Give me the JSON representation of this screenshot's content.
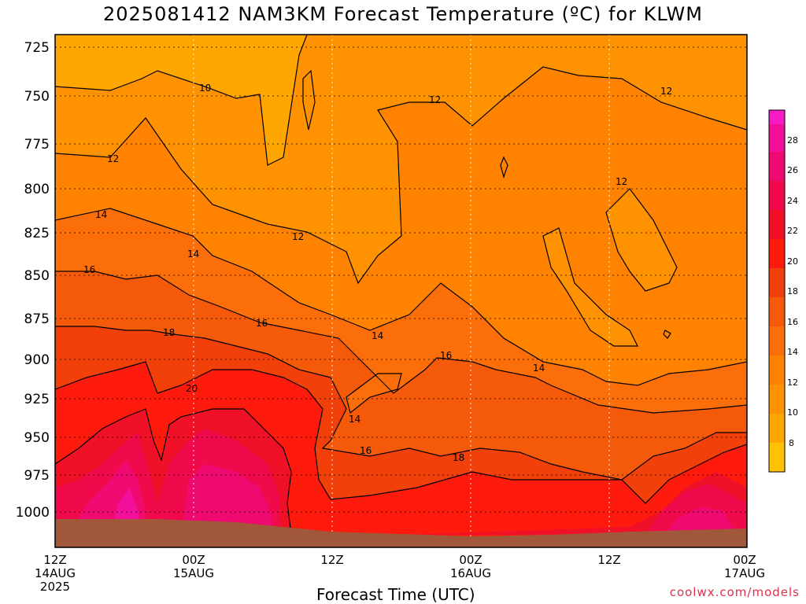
{
  "title": "2025081412 NAM3KM Forecast Temperature (ºC) for KLWM",
  "xlabel": "Forecast Time (UTC)",
  "credit": "coolwx.com/models",
  "chart_data": {
    "type": "heatmap",
    "title": "2025081412 NAM3KM Forecast Temperature (ºC) for KLWM",
    "xlabel": "Forecast Time (UTC)",
    "x_ticks": [
      {
        "line1": "12Z",
        "line2": "14AUG",
        "line3": "2025"
      },
      {
        "line1": "00Z",
        "line2": "15AUG",
        "line3": ""
      },
      {
        "line1": "12Z",
        "line2": "",
        "line3": ""
      },
      {
        "line1": "00Z",
        "line2": "16AUG",
        "line3": ""
      },
      {
        "line1": "12Z",
        "line2": "",
        "line3": ""
      },
      {
        "line1": "00Z",
        "line2": "17AUG",
        "line3": ""
      }
    ],
    "y_ticks": [
      "725",
      "750",
      "775",
      "800",
      "825",
      "850",
      "875",
      "900",
      "925",
      "950",
      "975",
      "1000"
    ],
    "colorbar": {
      "labels": [
        "8",
        "10",
        "12",
        "14",
        "16",
        "18",
        "20",
        "22",
        "24",
        "26",
        "28"
      ],
      "colors": [
        "#ffc200",
        "#ffa700",
        "#ff9200",
        "#ff8200",
        "#fb6e0a",
        "#f55a0a",
        "#f2400b",
        "#fe1a0d",
        "#f01028",
        "#f00a4c",
        "#ee0a70",
        "#f2109a",
        "#f61bc4"
      ]
    },
    "contour_labels": [
      "10",
      "12",
      "12",
      "12",
      "12",
      "14",
      "14",
      "14",
      "14",
      "14",
      "16",
      "16",
      "16",
      "16",
      "18",
      "18",
      "20"
    ],
    "ground_color": "#a0573a"
  }
}
